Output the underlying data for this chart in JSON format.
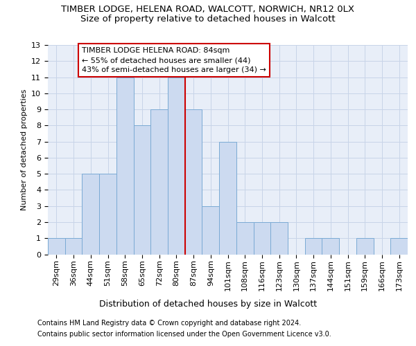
{
  "title1": "TIMBER LODGE, HELENA ROAD, WALCOTT, NORWICH, NR12 0LX",
  "title2": "Size of property relative to detached houses in Walcott",
  "xlabel": "Distribution of detached houses by size in Walcott",
  "ylabel": "Number of detached properties",
  "categories": [
    "29sqm",
    "36sqm",
    "44sqm",
    "51sqm",
    "58sqm",
    "65sqm",
    "72sqm",
    "80sqm",
    "87sqm",
    "94sqm",
    "101sqm",
    "108sqm",
    "116sqm",
    "123sqm",
    "130sqm",
    "137sqm",
    "144sqm",
    "151sqm",
    "159sqm",
    "166sqm",
    "173sqm"
  ],
  "values": [
    1,
    1,
    5,
    5,
    11,
    8,
    9,
    11,
    9,
    3,
    7,
    2,
    2,
    2,
    0,
    1,
    1,
    0,
    1,
    0,
    1
  ],
  "bar_color": "#ccdaf0",
  "bar_edge_color": "#7aaad4",
  "grid_color": "#c8d4e8",
  "background_color": "#ffffff",
  "plot_bg_color": "#e8eef8",
  "vline_color": "#cc0000",
  "vline_pos": 8,
  "ylim": [
    0,
    13
  ],
  "yticks": [
    0,
    1,
    2,
    3,
    4,
    5,
    6,
    7,
    8,
    9,
    10,
    11,
    12,
    13
  ],
  "annotation_line1": "TIMBER LODGE HELENA ROAD: 84sqm",
  "annotation_line2": "← 55% of detached houses are smaller (44)",
  "annotation_line3": "43% of semi-detached houses are larger (34) →",
  "footer1": "Contains HM Land Registry data © Crown copyright and database right 2024.",
  "footer2": "Contains public sector information licensed under the Open Government Licence v3.0.",
  "title1_fontsize": 9.5,
  "title2_fontsize": 9.5,
  "xlabel_fontsize": 9,
  "ylabel_fontsize": 8,
  "tick_fontsize": 8,
  "annotation_fontsize": 8,
  "footer_fontsize": 7
}
